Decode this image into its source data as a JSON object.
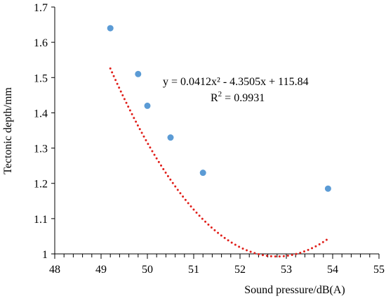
{
  "chart_data": {
    "type": "scatter",
    "xlabel": "Sound pressure/dB(A)",
    "ylabel": "Tectonic depth/mm",
    "xlim": [
      48,
      55
    ],
    "ylim": [
      1,
      1.7
    ],
    "x_ticks": [
      "48",
      "49",
      "50",
      "51",
      "52",
      "53",
      "54",
      "55"
    ],
    "y_ticks": [
      "1",
      "1.1",
      "1.2",
      "1.3",
      "1.4",
      "1.5",
      "1.6",
      "1.7"
    ],
    "x_tick_values": [
      48,
      49,
      50,
      51,
      52,
      53,
      54,
      55
    ],
    "y_tick_values": [
      1,
      1.1,
      1.2,
      1.3,
      1.4,
      1.5,
      1.6,
      1.7
    ],
    "minor_x_step": 0.2,
    "grid": false,
    "series": [
      {
        "points": [
          {
            "x": 49.2,
            "y": 1.64
          },
          {
            "x": 49.8,
            "y": 1.51
          },
          {
            "x": 50.0,
            "y": 1.42
          },
          {
            "x": 50.5,
            "y": 1.33
          },
          {
            "x": 51.2,
            "y": 1.23
          },
          {
            "x": 53.9,
            "y": 1.185
          }
        ],
        "color": "#5b9bd5"
      }
    ],
    "trendline": {
      "type": "polynomial",
      "coefficients": [
        0.0412,
        -4.3505,
        115.84
      ],
      "x_range": [
        49.2,
        53.9
      ],
      "color": "#e0201b",
      "style": "dotted"
    },
    "annotations": {
      "equation": "y = 0.0412x² - 4.3505x + 115.84",
      "r2_prefix": "R",
      "r2_sup": "2",
      "r2_value": " = 0.9931"
    }
  }
}
